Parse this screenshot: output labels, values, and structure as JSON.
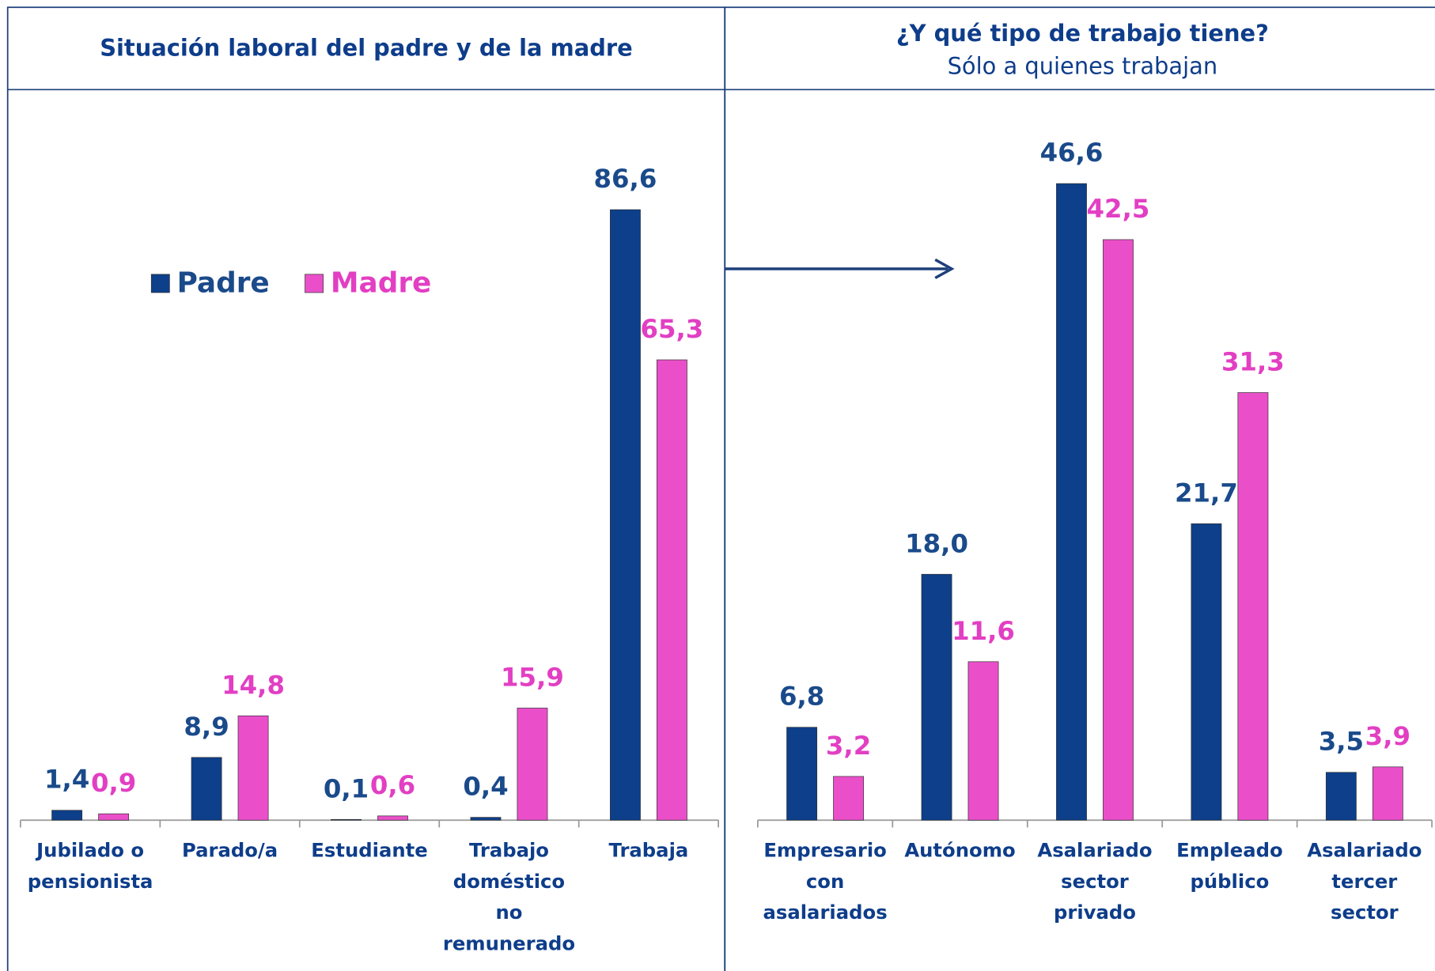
{
  "chart_data": [
    {
      "type": "bar",
      "title": "Situación laboral del padre y de la madre",
      "categories": [
        "Jubilado o pensionista",
        "Parado/a",
        "Estudiante",
        "Trabajo doméstico no remunerado",
        "Trabaja"
      ],
      "series": [
        {
          "name": "Padre",
          "color": "#0d3f8a",
          "values": [
            1.4,
            8.9,
            0.1,
            0.4,
            86.6
          ],
          "value_labels": [
            "1,4",
            "8,9",
            "0,1",
            "0,4",
            "86,6"
          ]
        },
        {
          "name": "Madre",
          "color": "#ea4fc9",
          "values": [
            0.9,
            14.8,
            0.6,
            15.9,
            65.3
          ],
          "value_labels": [
            "0,9",
            "14,8",
            "0,6",
            "15,9",
            "65,3"
          ]
        }
      ],
      "ylim": [
        0,
        100
      ],
      "legend": "upper left"
    },
    {
      "type": "bar",
      "title": "¿Y qué tipo de trabajo tiene?",
      "subtitle": "Sólo a quienes trabajan",
      "categories": [
        "Empresario con asalariados",
        "Autónomo",
        "Asalariado sector privado",
        "Empleado público",
        "Asalariado tercer sector"
      ],
      "series": [
        {
          "color": "#0d3f8a",
          "values": [
            6.8,
            18.0,
            46.6,
            21.7,
            3.5
          ],
          "value_labels": [
            "6,8",
            "18,0",
            "46,6",
            "21,7",
            "3,5"
          ]
        },
        {
          "color": "#ea4fc9",
          "values": [
            3.2,
            11.6,
            42.5,
            31.3,
            3.9
          ],
          "value_labels": [
            "3,2",
            "11,6",
            "42,5",
            "31,3",
            "3,9"
          ]
        }
      ],
      "ylim": [
        0,
        50
      ]
    }
  ]
}
